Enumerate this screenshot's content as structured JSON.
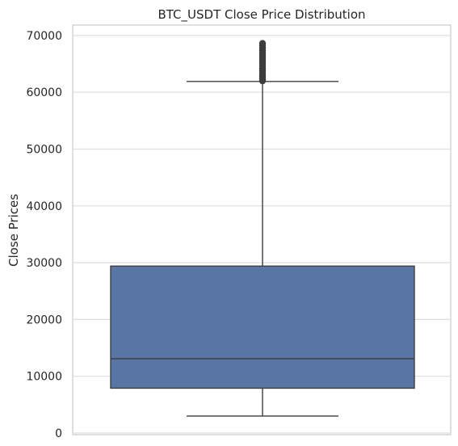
{
  "chart_data": {
    "type": "box",
    "title": "BTC_USDT Close Price Distribution",
    "xlabel": "",
    "ylabel": "Close Prices",
    "ylim": [
      0,
      72000
    ],
    "yticks": [
      0,
      10000,
      20000,
      30000,
      40000,
      50000,
      60000,
      70000
    ],
    "ytick_labels": [
      "0",
      "10000",
      "20000",
      "30000",
      "40000",
      "50000",
      "60000",
      "70000"
    ],
    "grid": true,
    "box": {
      "whisker_low": 3000,
      "q1": 7900,
      "median": 13100,
      "q3": 29400,
      "whisker_high": 61900,
      "outliers": [
        62000,
        62300,
        62600,
        63000,
        63400,
        63800,
        64200,
        64600,
        65000,
        65400,
        65800,
        66200,
        66600,
        67000,
        67400,
        67800,
        68200,
        68600
      ],
      "color": "#5975a4",
      "line_color": "#3d3d3d",
      "outlier_color": "#3d3d3d"
    }
  }
}
